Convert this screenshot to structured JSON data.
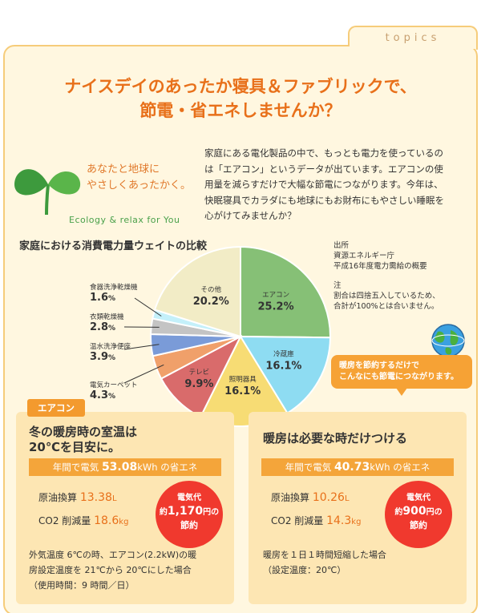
{
  "topics_label": "topics",
  "headline": {
    "line1": "ナイスデイのあったか寝具＆ファブリックで、",
    "line2": "節電・省エネしませんか？"
  },
  "slogan": {
    "line1": "あなたと地球に",
    "line2": "やさしくあったかく。",
    "english": "Ecology & relax for You"
  },
  "intro_text": "家庭にある電化製品の中で、もっとも電力を使っているのは「エアコン」というデータが出ています。エアコンの使用量を減らすだけで大幅な節電につながります。今年は、快眠寝具でカラダにも地球にもお財布にもやさしい睡眠を心がけてみませんか？",
  "source": {
    "heading": "出所",
    "line1": "資源エネルギー庁",
    "line2": "平成16年度電力需給の概要"
  },
  "note": {
    "heading": "注",
    "line1": "割合は四捨五入しているため、",
    "line2": "合計が100%とは合いません。"
  },
  "bubble": {
    "line1": "暖房を節約するだけで",
    "line2": "こんなにも節電につながります。"
  },
  "colors": {
    "aircon": "#86c076",
    "fridge": "#8edcf2",
    "lighting": "#f7dc74",
    "tv": "#d96b6b",
    "carpet": "#f0a06a",
    "toilet": "#7a9bd8",
    "dryer": "#c4c4c4",
    "dishwasher": "#c4f0fa",
    "other": "#f2ecc6",
    "accent": "#f4a53a",
    "headline": "#e8701a"
  },
  "chart_data": {
    "type": "pie",
    "title": "家庭における消費電力量ウェイトの比較",
    "unit": "%",
    "slices": [
      {
        "name": "エアコン",
        "value": 25.2
      },
      {
        "name": "冷蔵庫",
        "value": 16.1
      },
      {
        "name": "照明器具",
        "value": 16.1
      },
      {
        "name": "テレビ",
        "value": 9.9
      },
      {
        "name": "電気カーペット",
        "value": 4.3
      },
      {
        "name": "温水洗浄便座",
        "value": 3.9
      },
      {
        "name": "衣類乾燥機",
        "value": 2.8
      },
      {
        "name": "食器洗浄乾燥機",
        "value": 1.6
      },
      {
        "name": "その他",
        "value": 20.2
      }
    ]
  },
  "left_panel": {
    "tag": "エアコン",
    "heading1": "冬の暖房時の室温は",
    "heading2": "20℃を目安に。",
    "bar_prefix": "年間で電気",
    "bar_value": "53.08",
    "bar_unit": "kWh",
    "bar_suffix": "の省エネ",
    "oil_label": "原油換算",
    "oil_value": "13.38",
    "oil_unit": "L",
    "co2_label": "CO2 削減量",
    "co2_value": "18.6",
    "co2_unit": "kg",
    "circle_top": "電気代",
    "circle_prefix": "約",
    "circle_amount": "1,170",
    "circle_unit": "円の",
    "circle_bottom": "節約",
    "cond1": "外気温度 6℃の時、エアコン(2.2kW)の暖",
    "cond2": "房設定温度を 21℃から 20℃にした場合",
    "cond3": "（使用時間：9 時間／日）"
  },
  "right_panel": {
    "heading1": "暖房は必要な時だけつける",
    "bar_prefix": "年間で電気",
    "bar_value": "40.73",
    "bar_unit": "kWh",
    "bar_suffix": "の省エネ",
    "oil_label": "原油換算",
    "oil_value": "10.26",
    "oil_unit": "L",
    "co2_label": "CO2 削減量",
    "co2_value": "14.3",
    "co2_unit": "kg",
    "circle_top": "電気代",
    "circle_prefix": "約",
    "circle_amount": "900",
    "circle_unit": "円の",
    "circle_bottom": "節約",
    "cond1": "暖房を１日１時間短縮した場合",
    "cond2": "（設定温度：20℃）"
  }
}
